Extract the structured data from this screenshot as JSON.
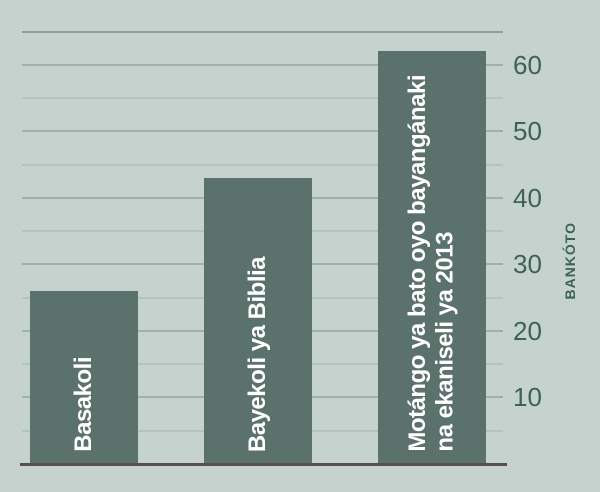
{
  "chart_data": {
    "type": "bar",
    "categories": [
      "Basakoli",
      "Bayekoli ya Biblia",
      "Motángo ya bato oyo bayangánaki na ekaniseli ya 2013"
    ],
    "category_lines": [
      [
        "Basakoli"
      ],
      [
        "Bayekoli ya Biblia"
      ],
      [
        "Motángo ya bato oyo bayangánaki",
        "na ekaniseli ya 2013"
      ]
    ],
    "values": [
      26,
      43,
      62
    ],
    "ylabel": "BANKÓTO",
    "xlabel": "",
    "yticks": [
      10,
      20,
      30,
      40,
      50,
      60
    ],
    "minor_ticks": [
      5,
      15,
      25,
      35,
      45,
      55
    ],
    "ylim": [
      0,
      65
    ],
    "grid": "horizontal",
    "legend": "none"
  },
  "colors": {
    "background": "#C6D2CE",
    "bar_fill": "#5A716C",
    "bar_label_text": "#FFFFFF",
    "axis_text": "#3E6254",
    "baseline": "#55504A",
    "gridline_major": "#9DB2AD",
    "gridline_minor": "#B3C3BF",
    "plot_top_border": "#909F9B"
  }
}
